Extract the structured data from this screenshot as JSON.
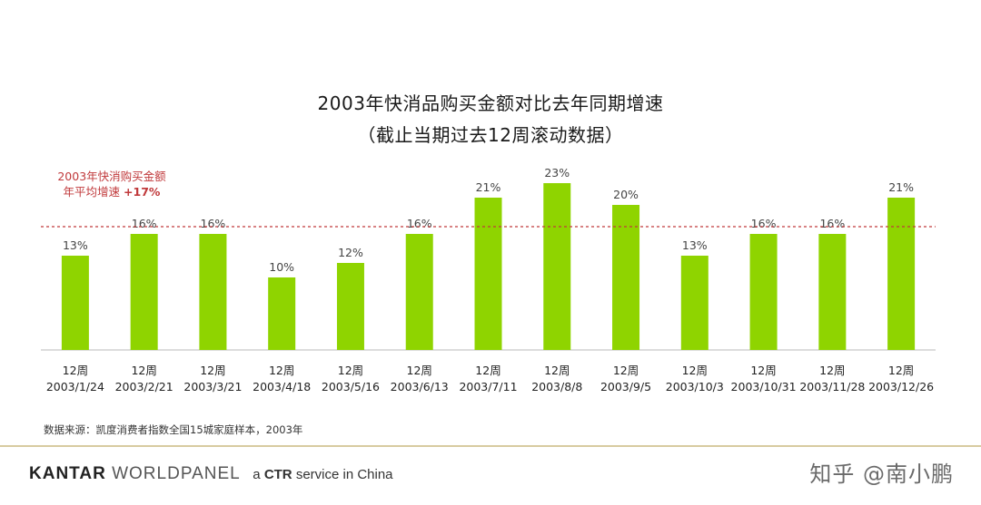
{
  "chart_data": {
    "type": "bar",
    "title": "2003年快消品购买金额对比去年同期增速",
    "subtitle": "（截止当期过去12周滚动数据）",
    "categories": [
      [
        "12周",
        "2003/1/24"
      ],
      [
        "12周",
        "2003/2/21"
      ],
      [
        "12周",
        "2003/3/21"
      ],
      [
        "12周",
        "2003/4/18"
      ],
      [
        "12周",
        "2003/5/16"
      ],
      [
        "12周",
        "2003/6/13"
      ],
      [
        "12周",
        "2003/7/11"
      ],
      [
        "12周",
        "2003/8/8"
      ],
      [
        "12周",
        "2003/9/5"
      ],
      [
        "12周",
        "2003/10/3"
      ],
      [
        "12周",
        "2003/10/31"
      ],
      [
        "12周",
        "2003/11/28"
      ],
      [
        "12周",
        "2003/12/26"
      ]
    ],
    "values": [
      13,
      16,
      16,
      10,
      12,
      16,
      21,
      23,
      20,
      13,
      16,
      16,
      21
    ],
    "data_labels": [
      "13%",
      "16%",
      "16%",
      "10%",
      "12%",
      "16%",
      "21%",
      "23%",
      "20%",
      "13%",
      "16%",
      "16%",
      "21%"
    ],
    "ylim": [
      0,
      25
    ],
    "grid": false,
    "reference_line": {
      "value": 17,
      "label_line1": "2003年快消购买金额",
      "label_line2_prefix": "年平均增速",
      "label_value": "+17%"
    },
    "colors": {
      "bar": "#8fd400",
      "reference": "#c0393b",
      "baseline": "#d0d0d0"
    }
  },
  "source_note": "数据来源：凯度消费者指数全国15城家庭样本，2003年",
  "brand": {
    "part1": "KANTAR",
    "part2": "WORLDPANEL",
    "tagline_pre": "a",
    "tagline_bold": "CTR",
    "tagline_post": "service in China"
  },
  "watermark": "知乎 @南小鹏"
}
